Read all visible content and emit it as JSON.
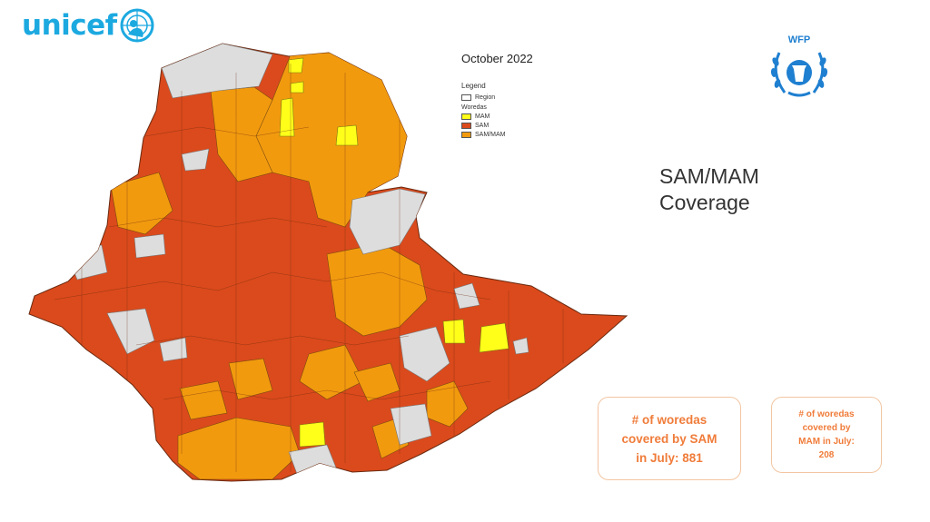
{
  "logos": {
    "unicef": {
      "text": "unicef",
      "color": "#1ca9e0"
    },
    "wfp": {
      "text": "WFP",
      "color": "#1f7fd0"
    }
  },
  "map": {
    "date": "October 2022",
    "legend": {
      "title": "Legend",
      "region_label": "Region",
      "group_label": "Woredas",
      "items": [
        {
          "label": "MAM",
          "color": "#ffff1a"
        },
        {
          "label": "SAM",
          "color": "#db4a1c"
        },
        {
          "label": "SAM/MAM",
          "color": "#f29a0e"
        }
      ]
    },
    "colors": {
      "region": "#dddddd",
      "sam": "#db4a1c",
      "mam": "#ffff1a",
      "sam_mam": "#f29a0e"
    }
  },
  "title": {
    "line1": "SAM/MAM",
    "line2": "Coverage"
  },
  "stats": {
    "sam": {
      "line1": "# of woredas",
      "line2": "covered by SAM",
      "line3": "in July: 881"
    },
    "mam": {
      "line1": "# of woredas",
      "line2": "covered by",
      "line3": "MAM in July:",
      "line4": "208"
    }
  }
}
